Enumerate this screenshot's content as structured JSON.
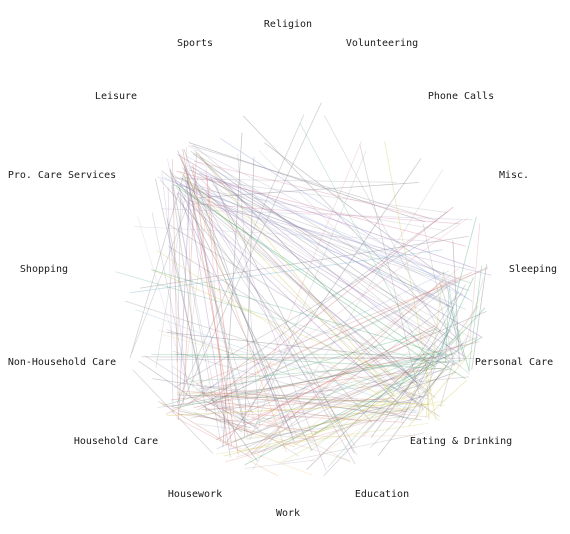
{
  "chart_data": {
    "type": "network",
    "title": "",
    "nodes": [
      {
        "id": "religion",
        "label": "Religion",
        "color": "#8a8a8a"
      },
      {
        "id": "volunteering",
        "label": "Volunteering",
        "color": "#8a8a8a"
      },
      {
        "id": "phone",
        "label": "Phone Calls",
        "color": "#8fb8c8"
      },
      {
        "id": "misc",
        "label": "Misc.",
        "color": "#d86a8a"
      },
      {
        "id": "sleeping",
        "label": "Sleeping",
        "color": "#8fa0d8"
      },
      {
        "id": "personal_care",
        "label": "Personal Care",
        "color": "#3aa86a"
      },
      {
        "id": "eating",
        "label": "Eating & Drinking",
        "color": "#c8c040"
      },
      {
        "id": "education",
        "label": "Education",
        "color": "#c8a080"
      },
      {
        "id": "work",
        "label": "Work",
        "color": "#e8a050"
      },
      {
        "id": "housework",
        "label": "Housework",
        "color": "#d86060"
      },
      {
        "id": "household_care",
        "label": "Household Care",
        "color": "#c87a70"
      },
      {
        "id": "nonhousehold_care",
        "label": "Non-Household Care",
        "color": "#a08a8a"
      },
      {
        "id": "shopping",
        "label": "Shopping",
        "color": "#6ab0c8"
      },
      {
        "id": "pro_care",
        "label": "Pro. Care Services",
        "color": "#b8a8c8"
      },
      {
        "id": "leisure",
        "label": "Leisure",
        "color": "#9a70b8"
      },
      {
        "id": "sports",
        "label": "Sports",
        "color": "#8a8a8a"
      }
    ],
    "links": [
      {
        "from": "leisure",
        "to": "sleeping",
        "count": 14
      },
      {
        "from": "leisure",
        "to": "personal_care",
        "count": 12
      },
      {
        "from": "leisure",
        "to": "eating",
        "count": 12
      },
      {
        "from": "leisure",
        "to": "housework",
        "count": 10
      },
      {
        "from": "leisure",
        "to": "household_care",
        "count": 9
      },
      {
        "from": "leisure",
        "to": "misc",
        "count": 7
      },
      {
        "from": "leisure",
        "to": "work",
        "count": 7
      },
      {
        "from": "leisure",
        "to": "education",
        "count": 5
      },
      {
        "from": "leisure",
        "to": "nonhousehold_care",
        "count": 4
      },
      {
        "from": "sports",
        "to": "housework",
        "count": 3
      },
      {
        "from": "sports",
        "to": "sleeping",
        "count": 2
      },
      {
        "from": "sports",
        "to": "personal_care",
        "count": 2
      },
      {
        "from": "religion",
        "to": "household_care",
        "count": 2
      },
      {
        "from": "religion",
        "to": "personal_care",
        "count": 2
      },
      {
        "from": "volunteering",
        "to": "housework",
        "count": 2
      },
      {
        "from": "volunteering",
        "to": "eating",
        "count": 2
      },
      {
        "from": "phone",
        "to": "leisure",
        "count": 2
      },
      {
        "from": "phone",
        "to": "housework",
        "count": 2
      },
      {
        "from": "misc",
        "to": "personal_care",
        "count": 4
      },
      {
        "from": "misc",
        "to": "household_care",
        "count": 4
      },
      {
        "from": "sleeping",
        "to": "personal_care",
        "count": 10
      },
      {
        "from": "sleeping",
        "to": "housework",
        "count": 6
      },
      {
        "from": "sleeping",
        "to": "household_care",
        "count": 6
      },
      {
        "from": "sleeping",
        "to": "eating",
        "count": 6
      },
      {
        "from": "personal_care",
        "to": "housework",
        "count": 10
      },
      {
        "from": "personal_care",
        "to": "household_care",
        "count": 10
      },
      {
        "from": "personal_care",
        "to": "work",
        "count": 8
      },
      {
        "from": "personal_care",
        "to": "eating",
        "count": 8
      },
      {
        "from": "personal_care",
        "to": "education",
        "count": 4
      },
      {
        "from": "personal_care",
        "to": "nonhousehold_care",
        "count": 5
      },
      {
        "from": "eating",
        "to": "housework",
        "count": 8
      },
      {
        "from": "eating",
        "to": "household_care",
        "count": 8
      },
      {
        "from": "eating",
        "to": "work",
        "count": 6
      },
      {
        "from": "eating",
        "to": "nonhousehold_care",
        "count": 5
      },
      {
        "from": "eating",
        "to": "shopping",
        "count": 3
      },
      {
        "from": "education",
        "to": "household_care",
        "count": 3
      },
      {
        "from": "work",
        "to": "housework",
        "count": 5
      },
      {
        "from": "work",
        "to": "household_care",
        "count": 4
      },
      {
        "from": "housework",
        "to": "household_care",
        "count": 8
      },
      {
        "from": "housework",
        "to": "nonhousehold_care",
        "count": 4
      },
      {
        "from": "shopping",
        "to": "misc",
        "count": 2
      },
      {
        "from": "shopping",
        "to": "personal_care",
        "count": 2
      },
      {
        "from": "pro_care",
        "to": "eating",
        "count": 3
      },
      {
        "from": "pro_care",
        "to": "household_care",
        "count": 3
      },
      {
        "from": "pro_care",
        "to": "misc",
        "count": 2
      }
    ]
  }
}
